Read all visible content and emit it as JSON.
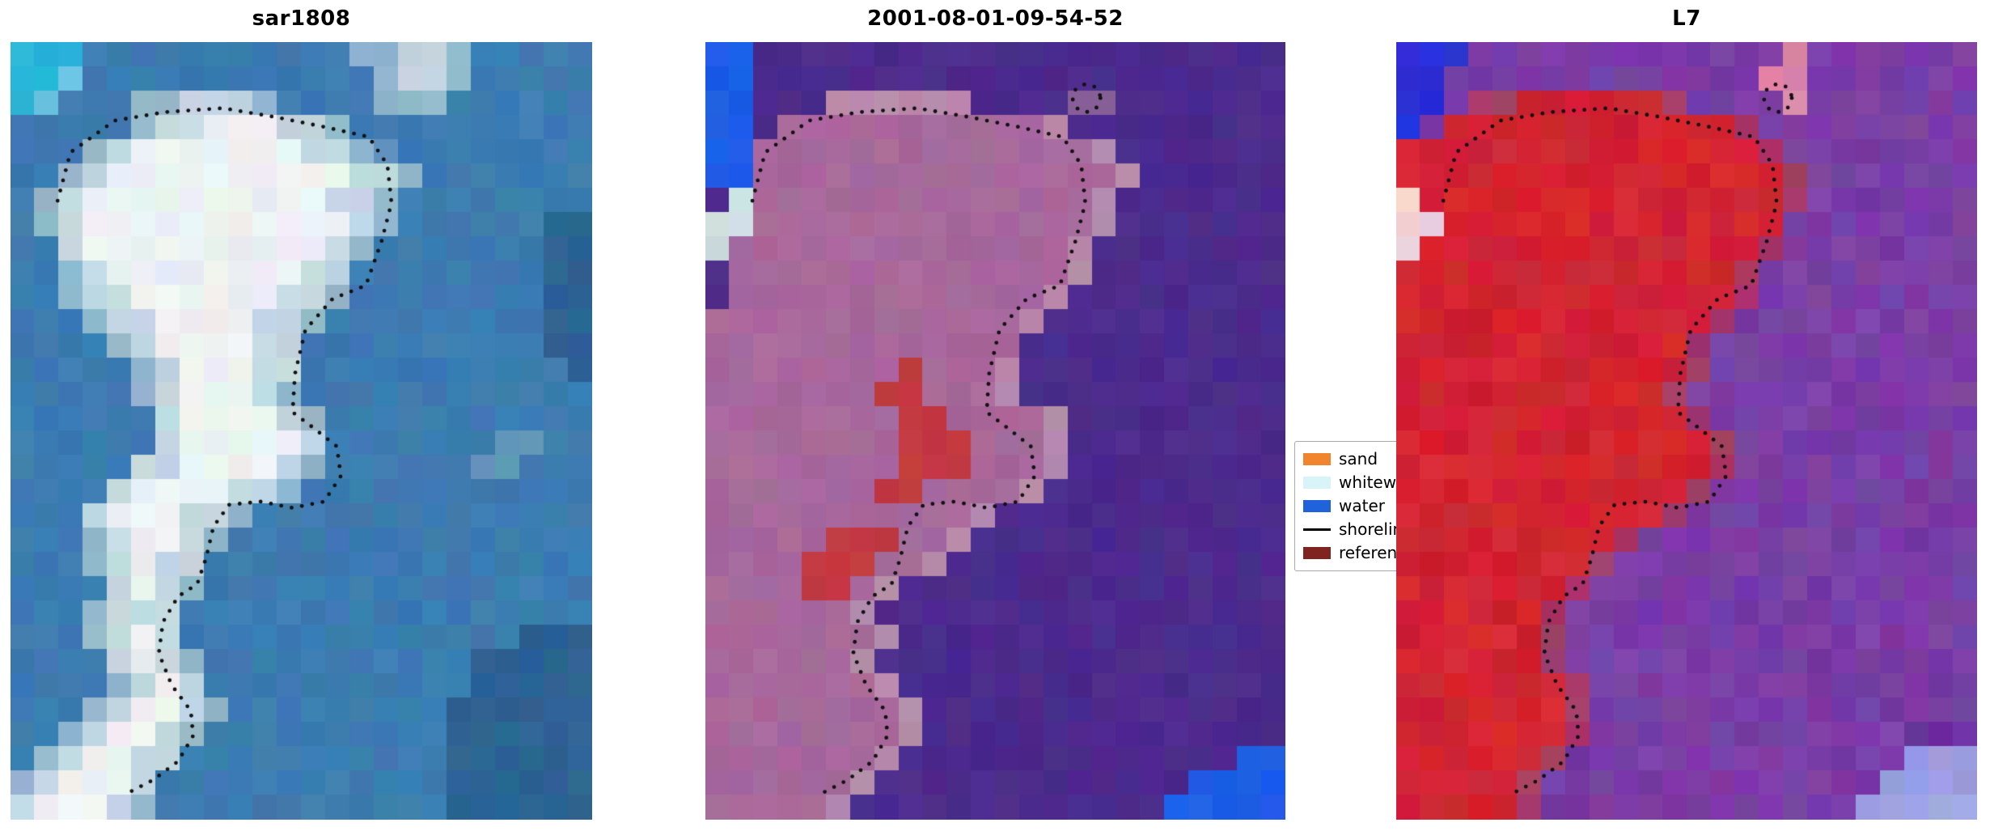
{
  "figure": {
    "background": "#ffffff"
  },
  "chart_data": {
    "type": "heatmap",
    "description": "Three-panel satellite image classification figure with dotted shoreline contour",
    "panels": [
      {
        "title": "sar1808",
        "cols": 24,
        "rows": 32,
        "jitter": 8,
        "seed": 11,
        "contours": [
          "main"
        ],
        "palette": {
          "b": "#3d7cb1",
          "d": "#2d6494",
          "c": "#29b6d8",
          "t": "#66c9de",
          "w": "#edf2f3",
          "l": "#c3d8e2",
          "m": "#93b8cc",
          "s": "#6496bb"
        },
        "grid": [
          "cccbbbbbbbbbbbmmllmbbbbb",
          "cctbbbbbbbbbbbbmllmbbbbb",
          "ctbbbmmlllmbbbbmmmbbbbbb",
          "bbbbbmllwwwllmbbbbbbbbbb",
          "bbbmlwwwwwwwllmsbbbbbbbb",
          "bbmlwwwwwwwwwwllmbbbbbbb",
          "bmlwwwwwwwwwwllmbbbbbbbb",
          "bmlwwwwwwwwwwwlmbbbbbbdd",
          "bblwwwwwwwwwwlmbbbbbbbdd",
          "bbmlwwwwwwwwllbbbbbbbbdd",
          "bbmllwwwwwwllmbbbbbbbbdd",
          "bbbmllwwwwllmbbbbbbbbbdd",
          "bbbbmlwwwwllbbbbbbbbbbdd",
          "bbbbbmlwwwllbbbbbbbbbbbd",
          "bbbbbmlwwwlmbbbbbbbbbbbb",
          "bbbbbblwwwwlmbbbbbbbbbbb",
          "bbbbbblwwwwwlbbbbbbbssbb",
          "bbbbbllwwwwlmbbbbbbssbbb",
          "bbbblwwwwllmbbbbbbbbbbbb",
          "bbblwwwllmbbbbbbbbbbbbbb",
          "bbbmlwwlmbbbbbbbbbbbbbbb",
          "bbbmlwllbbbbbbbbbbbbbbbb",
          "bbbblwlmbbbbbbbbbbbbbbbb",
          "bbbmlllbbbbbbbbbbbbbbbbb",
          "bbbmlwlbbbbbbbbbbbbbbddd",
          "bbbblwlmbbbbbbbbbbbddddd",
          "bbbbmlwlbbbbbbbbbbbddddd",
          "bbbmlwwlmbbbbbbbbbdddddd",
          "bbmlwwlmbbbbbbbbbbdddddd",
          "bmlwwllbbbbbbbbbbbdddddd",
          "mlwwwlbbbbbbbbbbbbdddddd",
          "lwwwlmbbbbbbbbbbbbdddddd"
        ]
      },
      {
        "title": "2001-08-01-09-54-52",
        "cols": 24,
        "rows": 32,
        "jitter": 7,
        "seed": 22,
        "contours": [
          "main",
          "islet"
        ],
        "palette": {
          "p": "#4c2b8d",
          "q": "#5c3a9a",
          "k": "#a8699c",
          "j": "#b78bac",
          "r": "#c23a40",
          "u": "#1e5ee8",
          "g": "#ccdfe2",
          "v": "#8a5f96"
        },
        "grid": [
          "uupppppppppppppppppppppp",
          "uupppppppppppppppppppppp",
          "uupppjjjjjjppppvvppppppp",
          "uupkkkkkkkkkkkjppppppppp",
          "uukkkkkkkkkkkkkkjppppppp",
          "uukkkkkkkkkkkkkkkjpppppp",
          "pgkkkkkkkkkkkkkkjppppppp",
          "ggkkkkkkkkkkkkkkjppppppp",
          "gkkkkkkkkkkkkkkjpppppppp",
          "pkkkkkkkkkkkkkkjpppppppp",
          "pkkkkkkkkkkkkkjppppppppp",
          "kkkkkkkkkkkkkjpppppppppp",
          "kkkkkkkkkkkkkppppppppppp",
          "kkkkkkkkrkkkjppppppppppp",
          "kkkkkkkrrkkkjppppppppppp",
          "kkkkkkkkrrkkkkjppppppppp",
          "kkkkkkkkrrrkkkjppppppppp",
          "kkkkkkkkrrrkkkjppppppppp",
          "kkkkkkkrrkkkkjpppppppppp",
          "kkkkkkkkkkkjpppppppppppp",
          "kkkkkrrrkkjppppppppppppp",
          "kkkkrrrkkjpppppppppppppp",
          "kkkkrrkjpppppppppppppppp",
          "kkkkkkjppppppppppppppppp",
          "kkkkkkkjpppppppppppppppp",
          "kkkkkkjppppppppppppppppp",
          "kkkkkkkjpppppppppppppppp",
          "kkkkkkkkjppppppppppppppp",
          "kkkkkkkkjppppppppppppppp",
          "kkkkkkkjppppppppppppppuu",
          "kkkkkkjpppppppppppppuuuu",
          "kkkkkjpppppppppppppuuuuu"
        ]
      },
      {
        "title": "L7",
        "cols": 24,
        "rows": 32,
        "jitter": 11,
        "seed": 33,
        "contours": [
          "main",
          "islet"
        ],
        "palette": {
          "R": "#d22432",
          "P": "#7a3ea6",
          "Q": "#65309a",
          "U": "#2b2fd9",
          "N": "#e08ca4",
          "G": "#efcfd6",
          "O": "#a43a68",
          "F": "#9aa2e2"
        },
        "grid": [
          "UUUPPPPPPPPPPPPPNPPPPPPP",
          "UUPPPPPPPPPPPPPNNPPPPPPP",
          "UUPOORRRRRROPPPPNPPPPPPP",
          "UPRRRRRRRRRRRROPPPPPPPPP",
          "RRRRRRRRRRRRRRROPPPPPPPP",
          "RRRRRRRRRRRRRRRROPPPPPPP",
          "GRRRRRRRRRRRRRRROPPPPPPP",
          "GGRRRRRRRRRRRRRRPPPPPPPP",
          "GRRRRRRRRRRRRRROPPPPPPPP",
          "RRRRRRRRRRRRRROPPPPPPPPP",
          "RRRRRRRRRRRRRROPPPPPPPPP",
          "RRRRRRRRRRRRROPPPPPPPPPP",
          "RRRRRRRRRRRROPPPPPPPPPPP",
          "RRRRRRRRRRRROPPPPPPPPPPP",
          "RRRRRRRRRRROPPPPPPPPPPPP",
          "RRRRRRRRRRRROPPPPPPPPPPP",
          "RRRRRRRRRRRRROPPPPPPPPPP",
          "RRRRRRRRRRRRROPPPPPPPPPP",
          "RRRRRRRRRRRROPPPPPPPPPPP",
          "RRRRRRRRRRROPPPPPPPPPPPP",
          "RRRRRRRRROPPPPPPPPPPPPPP",
          "RRRRRRRROPPPPPPPPPPPPPPP",
          "RRRRRRROPPPPPPPPPPPPPPPP",
          "RRRRRROPPPPPPPPPPPPPPPPP",
          "RRRRRROPPPPPPPPPPPPPPPPP",
          "RRRRRROPPPPPPPPPPPPPPPPP",
          "RRRRRRROPPPPPPPPPPPPPPPP",
          "RRRRRRROPPPPPPPPPPPPPPPP",
          "RRRRRRROPPPPPPPPPPPPPQQP",
          "RRRRRROPPPPPPPPPPPPPPFFF",
          "RRRRROPPPPPPPPPPPPPPFFFF",
          "RRRRROPPPPPPPPPPPPPFFFFF"
        ]
      }
    ],
    "contours": {
      "main": [
        [
          0.081,
          0.204
        ],
        [
          0.103,
          0.142
        ],
        [
          0.179,
          0.101
        ],
        [
          0.266,
          0.09
        ],
        [
          0.365,
          0.085
        ],
        [
          0.452,
          0.096
        ],
        [
          0.539,
          0.109
        ],
        [
          0.616,
          0.122
        ],
        [
          0.648,
          0.158
        ],
        [
          0.655,
          0.207
        ],
        [
          0.638,
          0.256
        ],
        [
          0.611,
          0.313
        ],
        [
          0.554,
          0.33
        ],
        [
          0.507,
          0.37
        ],
        [
          0.489,
          0.427
        ],
        [
          0.485,
          0.476
        ],
        [
          0.524,
          0.498
        ],
        [
          0.561,
          0.52
        ],
        [
          0.568,
          0.558
        ],
        [
          0.539,
          0.591
        ],
        [
          0.485,
          0.599
        ],
        [
          0.43,
          0.591
        ],
        [
          0.376,
          0.595
        ],
        [
          0.349,
          0.623
        ],
        [
          0.336,
          0.664
        ],
        [
          0.321,
          0.697
        ],
        [
          0.288,
          0.713
        ],
        [
          0.262,
          0.746
        ],
        [
          0.255,
          0.786
        ],
        [
          0.277,
          0.827
        ],
        [
          0.31,
          0.86
        ],
        [
          0.314,
          0.892
        ],
        [
          0.288,
          0.925
        ],
        [
          0.245,
          0.949
        ],
        [
          0.201,
          0.966
        ]
      ],
      "islet": {
        "cx": 0.657,
        "cy": 0.072,
        "r": 0.024
      }
    },
    "shoreline_style": {
      "color": "#111111",
      "dot_radius": 2.4,
      "dot_spacing": 13
    }
  },
  "legend": {
    "entries": [
      {
        "label": "sand",
        "color": "#f0852d",
        "type": "patch"
      },
      {
        "label": "whitewater",
        "color": "#d8f4f8",
        "type": "patch"
      },
      {
        "label": "water",
        "color": "#1f62dc",
        "type": "patch"
      },
      {
        "label": "shoreline",
        "color": "#000000",
        "type": "line"
      },
      {
        "label": "reference shoreline",
        "color": "#7f2420",
        "type": "patch"
      }
    ]
  }
}
